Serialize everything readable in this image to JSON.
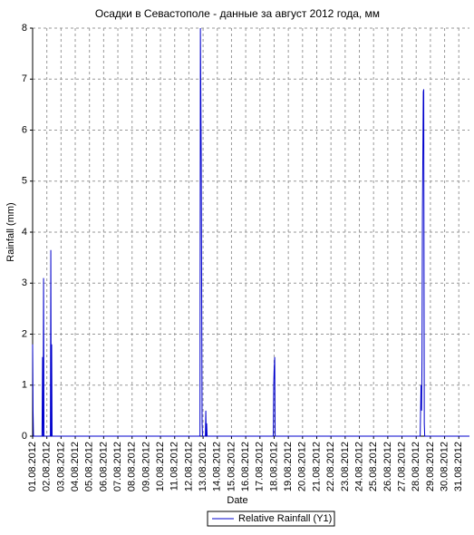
{
  "chart_data": {
    "type": "line",
    "title": "Осадки в Севастополе - данные за август 2012 года, мм",
    "x_label": "Date",
    "y_label": "Rainfall (mm)",
    "x": [
      1.0,
      1.03,
      1.06,
      1.66,
      1.7,
      1.73,
      1.77,
      1.8,
      2.25,
      2.28,
      2.31,
      2.34,
      2.37,
      12.78,
      12.81,
      12.87,
      12.93,
      12.96,
      13.16,
      13.19,
      13.22,
      13.25,
      13.28,
      17.94,
      17.97,
      18.0,
      18.04,
      18.07,
      28.28,
      28.31,
      28.34,
      28.38,
      28.41,
      28.44,
      28.5,
      28.53,
      28.57,
      28.6,
      31.75
    ],
    "series": [
      {
        "name": "Relative Rainfall (Y1)",
        "color": "#0000cc",
        "values": [
          1.8,
          0.5,
          0,
          0,
          1.55,
          0,
          3.1,
          0,
          0,
          3.65,
          0,
          1.8,
          0,
          0,
          8,
          5.4,
          0.25,
          0,
          0,
          0.5,
          0,
          0.25,
          0,
          0,
          1.0,
          1.3,
          1.55,
          0,
          0,
          0.5,
          1.0,
          0.5,
          1.55,
          4.4,
          6.75,
          6.8,
          0.25,
          0,
          0
        ]
      }
    ],
    "xlim": [
      1,
      31.75
    ],
    "ylim": [
      0,
      8
    ],
    "yticks": [
      0,
      1,
      2,
      3,
      4,
      5,
      6,
      7,
      8
    ],
    "xticks": [
      {
        "value": 1,
        "label": "01.08.2012"
      },
      {
        "value": 2,
        "label": "02.08.2012"
      },
      {
        "value": 3,
        "label": "03.08.2012"
      },
      {
        "value": 4,
        "label": "04.08.2012"
      },
      {
        "value": 5,
        "label": "05.08.2012"
      },
      {
        "value": 6,
        "label": "06.08.2012"
      },
      {
        "value": 7,
        "label": "07.08.2012"
      },
      {
        "value": 8,
        "label": "08.08.2012"
      },
      {
        "value": 9,
        "label": "09.08.2012"
      },
      {
        "value": 10,
        "label": "10.08.2012"
      },
      {
        "value": 11,
        "label": "11.08.2012"
      },
      {
        "value": 12,
        "label": "12.08.2012"
      },
      {
        "value": 13,
        "label": "13.08.2012"
      },
      {
        "value": 14,
        "label": "14.08.2012"
      },
      {
        "value": 15,
        "label": "15.08.2012"
      },
      {
        "value": 16,
        "label": "16.08.2012"
      },
      {
        "value": 17,
        "label": "17.08.2012"
      },
      {
        "value": 18,
        "label": "18.08.2012"
      },
      {
        "value": 19,
        "label": "19.08.2012"
      },
      {
        "value": 20,
        "label": "20.08.2012"
      },
      {
        "value": 21,
        "label": "21.08.2012"
      },
      {
        "value": 22,
        "label": "22.08.2012"
      },
      {
        "value": 23,
        "label": "23.08.2012"
      },
      {
        "value": 24,
        "label": "24.08.2012"
      },
      {
        "value": 25,
        "label": "25.08.2012"
      },
      {
        "value": 26,
        "label": "26.08.2012"
      },
      {
        "value": 27,
        "label": "27.08.2012"
      },
      {
        "value": 28,
        "label": "28.08.2012"
      },
      {
        "value": 29,
        "label": "29.08.2012"
      },
      {
        "value": 30,
        "label": "30.08.2012"
      },
      {
        "value": 31,
        "label": "31.08.2012"
      }
    ],
    "grid": true,
    "legend": "bottom"
  }
}
